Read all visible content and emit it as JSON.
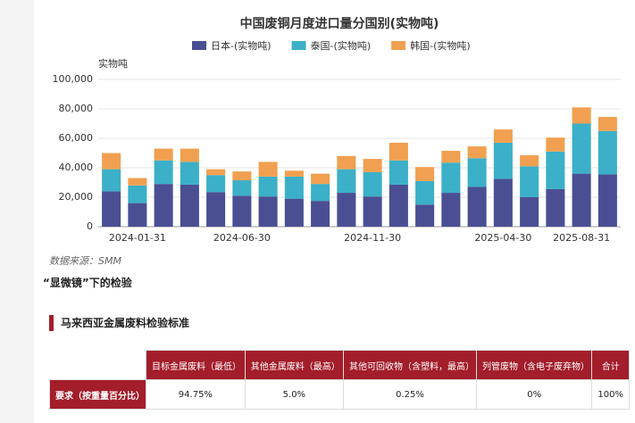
{
  "chart_data": {
    "type": "stacked-bar",
    "title": "中国废铜月度进口量分国别(实物吨)",
    "y_label": "实物吨",
    "categories": [
      null,
      "2024-01-31",
      null,
      null,
      null,
      "2024-06-30",
      null,
      null,
      null,
      null,
      "2024-11-30",
      null,
      null,
      null,
      null,
      "2025-04-30",
      null,
      null,
      "2025-08-31",
      null
    ],
    "series": [
      {
        "name": "日本-(实物吨)",
        "color": "#4a4f93",
        "values": [
          24000,
          16000,
          29000,
          28500,
          23500,
          21000,
          20500,
          19000,
          17500,
          23000,
          20500,
          28500,
          15000,
          23000,
          27000,
          32500,
          20000,
          25500,
          36000,
          35500
        ]
      },
      {
        "name": "泰国-(实物吨)",
        "color": "#3bb0c8",
        "values": [
          15000,
          12000,
          16000,
          15500,
          11500,
          10500,
          13500,
          15000,
          11500,
          16000,
          16500,
          16500,
          16000,
          20500,
          19500,
          24500,
          21000,
          25500,
          34000,
          29500
        ]
      },
      {
        "name": "韩国-(实物吨)",
        "color": "#f0a050",
        "values": [
          11000,
          5000,
          8000,
          9000,
          4000,
          6000,
          10000,
          4000,
          7000,
          9000,
          9000,
          12000,
          9500,
          8000,
          8000,
          9000,
          7500,
          9500,
          11000,
          9500
        ]
      }
    ],
    "ylim": [
      0,
      100000
    ],
    "yticks": [
      0,
      {
        "value": 20000,
        "label": "20,000"
      },
      {
        "value": 40000,
        "label": "40,000"
      },
      {
        "value": 60000,
        "label": "60,000"
      },
      {
        "value": 80000,
        "label": "80,000"
      },
      {
        "value": 100000,
        "label": "100,000"
      }
    ],
    "grid": true
  },
  "source": "数据来源：SMM",
  "subheading": "“显微镜”下的检验",
  "section_title": "马来西亚金属废料检验标准",
  "table": {
    "columns": [
      "目标金属废料（最低）",
      "其他金属废料（最高）",
      "其他可回收物（含塑料，最高）",
      "列管废物（含电子废弃物）",
      "合计"
    ],
    "rows": [
      {
        "label": "要求（按重量百分比）",
        "cells": [
          "94.75%",
          "5.0%",
          "0.25%",
          "0%",
          "100%"
        ]
      }
    ]
  }
}
